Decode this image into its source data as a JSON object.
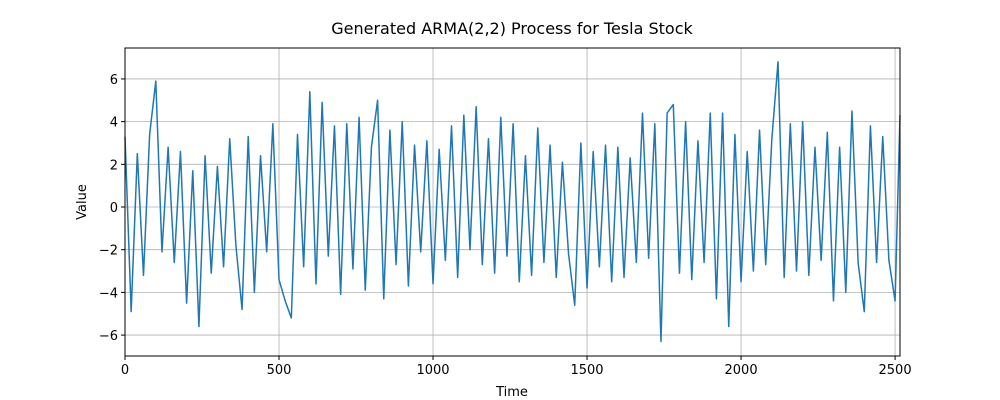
{
  "chart_data": {
    "type": "line",
    "title": "Generated ARMA(2,2) Process for Tesla Stock",
    "x_label": "Time",
    "y_label": "Value",
    "x": [
      0,
      20,
      40,
      60,
      80,
      100,
      120,
      140,
      160,
      180,
      200,
      220,
      240,
      260,
      280,
      300,
      320,
      340,
      360,
      380,
      400,
      420,
      440,
      460,
      480,
      500,
      520,
      540,
      560,
      580,
      600,
      620,
      640,
      660,
      680,
      700,
      720,
      740,
      760,
      780,
      800,
      820,
      840,
      860,
      880,
      900,
      920,
      940,
      960,
      980,
      1000,
      1020,
      1040,
      1060,
      1080,
      1100,
      1120,
      1140,
      1160,
      1180,
      1200,
      1220,
      1240,
      1260,
      1280,
      1300,
      1320,
      1340,
      1360,
      1380,
      1400,
      1420,
      1440,
      1460,
      1480,
      1500,
      1520,
      1540,
      1560,
      1580,
      1600,
      1620,
      1640,
      1660,
      1680,
      1700,
      1720,
      1740,
      1760,
      1780,
      1800,
      1820,
      1840,
      1860,
      1880,
      1900,
      1920,
      1940,
      1960,
      1980,
      2000,
      2020,
      2040,
      2060,
      2080,
      2100,
      2120,
      2140,
      2160,
      2180,
      2200,
      2220,
      2240,
      2260,
      2280,
      2300,
      2320,
      2340,
      2360,
      2380,
      2400,
      2420,
      2440,
      2460,
      2480,
      2500,
      2516
    ],
    "series": [
      {
        "color": "#1f77b4",
        "values": [
          3.3,
          -4.9,
          2.5,
          -3.2,
          3.4,
          5.9,
          -2.1,
          2.8,
          -2.6,
          2.6,
          -4.5,
          1.7,
          -5.6,
          2.4,
          -3.1,
          1.9,
          -2.8,
          3.2,
          -1.8,
          -4.8,
          3.3,
          -4.0,
          2.4,
          -2.1,
          3.9,
          -3.4,
          -4.4,
          -5.2,
          3.4,
          -2.8,
          5.4,
          -3.6,
          4.9,
          -2.3,
          3.8,
          -4.1,
          3.9,
          -2.9,
          4.2,
          -3.9,
          2.8,
          5.0,
          -4.3,
          3.6,
          -2.7,
          4.0,
          -3.7,
          2.9,
          -2.1,
          3.1,
          -3.6,
          2.7,
          -2.5,
          3.8,
          -3.3,
          4.3,
          -2.0,
          4.7,
          -2.7,
          3.2,
          -3.1,
          4.2,
          -2.3,
          3.9,
          -3.5,
          2.4,
          -3.2,
          3.7,
          -2.6,
          2.9,
          -3.3,
          2.1,
          -2.2,
          -4.6,
          3.0,
          -3.8,
          2.6,
          -2.8,
          2.9,
          -3.5,
          2.8,
          -3.3,
          2.3,
          -2.6,
          4.4,
          -2.4,
          3.9,
          -6.3,
          4.4,
          4.8,
          -3.1,
          4.0,
          -3.4,
          3.1,
          -2.6,
          4.4,
          -4.3,
          4.4,
          -5.6,
          3.4,
          -3.5,
          2.6,
          -3.0,
          3.6,
          -2.7,
          3.2,
          6.8,
          -3.3,
          3.9,
          -3.0,
          4.0,
          -3.2,
          2.8,
          -2.5,
          3.5,
          -4.4,
          2.8,
          -4.0,
          4.5,
          -2.6,
          -4.9,
          3.8,
          -2.6,
          3.3,
          -2.5,
          -4.4,
          4.3
        ]
      }
    ],
    "xlim": [
      0,
      2516
    ],
    "ylim": [
      -6.98,
      7.45
    ],
    "xticks": [
      0,
      500,
      1000,
      1500,
      2000,
      2500
    ],
    "yticks": [
      {
        "value": -6,
        "label": "−6"
      },
      {
        "value": -4,
        "label": "−4"
      },
      {
        "value": -2,
        "label": "−2"
      },
      0,
      2,
      4,
      6
    ],
    "grid": true
  }
}
